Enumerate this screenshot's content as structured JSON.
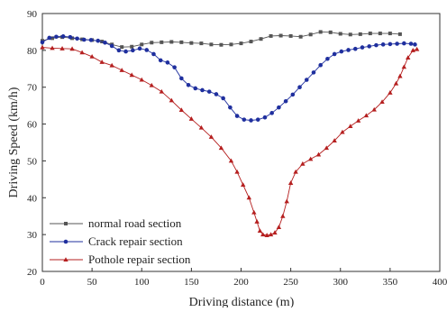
{
  "chart_data": {
    "type": "line",
    "xlabel": "Driving distance (m)",
    "ylabel": "Driving Speed (km/h)",
    "xlim": [
      0,
      400
    ],
    "ylim": [
      20,
      90
    ],
    "xticks": [
      0,
      50,
      100,
      150,
      200,
      250,
      300,
      350,
      400
    ],
    "yticks": [
      20,
      30,
      40,
      50,
      60,
      70,
      80,
      90
    ],
    "grid": false,
    "legend_position": "bottom-left",
    "series": [
      {
        "name": "normal road section",
        "color": "#555555",
        "marker": "square",
        "points": [
          [
            0,
            82.6
          ],
          [
            10,
            83.3
          ],
          [
            20,
            83.6
          ],
          [
            30,
            83.3
          ],
          [
            40,
            83.0
          ],
          [
            50,
            82.8
          ],
          [
            60,
            82.4
          ],
          [
            70,
            81.6
          ],
          [
            80,
            80.9
          ],
          [
            90,
            81.0
          ],
          [
            100,
            81.6
          ],
          [
            110,
            82.1
          ],
          [
            120,
            82.2
          ],
          [
            130,
            82.3
          ],
          [
            140,
            82.2
          ],
          [
            150,
            82.0
          ],
          [
            160,
            81.9
          ],
          [
            170,
            81.6
          ],
          [
            180,
            81.5
          ],
          [
            190,
            81.6
          ],
          [
            200,
            81.9
          ],
          [
            210,
            82.4
          ],
          [
            220,
            83.1
          ],
          [
            230,
            83.9
          ],
          [
            240,
            84.0
          ],
          [
            250,
            83.9
          ],
          [
            260,
            83.7
          ],
          [
            270,
            84.3
          ],
          [
            280,
            85.0
          ],
          [
            290,
            84.9
          ],
          [
            300,
            84.5
          ],
          [
            310,
            84.3
          ],
          [
            320,
            84.4
          ],
          [
            330,
            84.6
          ],
          [
            340,
            84.6
          ],
          [
            350,
            84.6
          ],
          [
            360,
            84.4
          ]
        ]
      },
      {
        "name": "Crack repair section",
        "color": "#1f2f9e",
        "marker": "circle",
        "points": [
          [
            0,
            82.2
          ],
          [
            7,
            83.4
          ],
          [
            14,
            83.7
          ],
          [
            21,
            83.8
          ],
          [
            28,
            83.6
          ],
          [
            35,
            83.2
          ],
          [
            42,
            82.9
          ],
          [
            49,
            82.8
          ],
          [
            56,
            82.6
          ],
          [
            63,
            82.1
          ],
          [
            70,
            81.2
          ],
          [
            77,
            80.0
          ],
          [
            84,
            79.7
          ],
          [
            91,
            80.0
          ],
          [
            98,
            80.5
          ],
          [
            105,
            80.1
          ],
          [
            112,
            79.0
          ],
          [
            119,
            77.3
          ],
          [
            126,
            76.7
          ],
          [
            133,
            75.4
          ],
          [
            140,
            72.4
          ],
          [
            147,
            70.6
          ],
          [
            154,
            69.7
          ],
          [
            161,
            69.2
          ],
          [
            168,
            68.8
          ],
          [
            175,
            68.1
          ],
          [
            182,
            67.0
          ],
          [
            189,
            64.5
          ],
          [
            196,
            62.2
          ],
          [
            203,
            61.2
          ],
          [
            210,
            61.0
          ],
          [
            217,
            61.2
          ],
          [
            224,
            61.8
          ],
          [
            231,
            63.0
          ],
          [
            238,
            64.5
          ],
          [
            245,
            66.2
          ],
          [
            252,
            68.0
          ],
          [
            259,
            70.0
          ],
          [
            266,
            72.0
          ],
          [
            273,
            74.0
          ],
          [
            280,
            76.0
          ],
          [
            287,
            77.7
          ],
          [
            294,
            79.0
          ],
          [
            301,
            79.7
          ],
          [
            308,
            80.1
          ],
          [
            315,
            80.4
          ],
          [
            322,
            80.8
          ],
          [
            329,
            81.1
          ],
          [
            336,
            81.4
          ],
          [
            343,
            81.6
          ],
          [
            350,
            81.7
          ],
          [
            357,
            81.8
          ],
          [
            364,
            81.9
          ],
          [
            371,
            81.8
          ],
          [
            375,
            81.6
          ]
        ]
      },
      {
        "name": "Pothole repair section",
        "color": "#b51f1f",
        "marker": "triangle",
        "points": [
          [
            0,
            80.8
          ],
          [
            10,
            80.6
          ],
          [
            20,
            80.5
          ],
          [
            30,
            80.4
          ],
          [
            40,
            79.4
          ],
          [
            50,
            78.3
          ],
          [
            60,
            76.8
          ],
          [
            70,
            75.9
          ],
          [
            80,
            74.6
          ],
          [
            90,
            73.3
          ],
          [
            100,
            72.0
          ],
          [
            110,
            70.5
          ],
          [
            120,
            68.8
          ],
          [
            130,
            66.4
          ],
          [
            140,
            63.8
          ],
          [
            150,
            61.4
          ],
          [
            160,
            59.0
          ],
          [
            170,
            56.5
          ],
          [
            180,
            53.5
          ],
          [
            190,
            50.0
          ],
          [
            196,
            47.0
          ],
          [
            202,
            43.5
          ],
          [
            208,
            40.0
          ],
          [
            213,
            36.0
          ],
          [
            216,
            33.5
          ],
          [
            219,
            31.0
          ],
          [
            222,
            30.0
          ],
          [
            226,
            29.8
          ],
          [
            230,
            30.0
          ],
          [
            234,
            30.5
          ],
          [
            238,
            32.0
          ],
          [
            242,
            35.0
          ],
          [
            246,
            39.0
          ],
          [
            250,
            44.0
          ],
          [
            255,
            47.0
          ],
          [
            262,
            49.2
          ],
          [
            270,
            50.5
          ],
          [
            278,
            51.7
          ],
          [
            286,
            53.5
          ],
          [
            294,
            55.5
          ],
          [
            302,
            57.8
          ],
          [
            310,
            59.4
          ],
          [
            318,
            60.9
          ],
          [
            326,
            62.3
          ],
          [
            334,
            63.9
          ],
          [
            342,
            66.0
          ],
          [
            350,
            68.5
          ],
          [
            356,
            71.0
          ],
          [
            360,
            73.0
          ],
          [
            364,
            75.5
          ],
          [
            368,
            78.0
          ],
          [
            373,
            80.0
          ],
          [
            377,
            80.3
          ]
        ]
      }
    ]
  }
}
